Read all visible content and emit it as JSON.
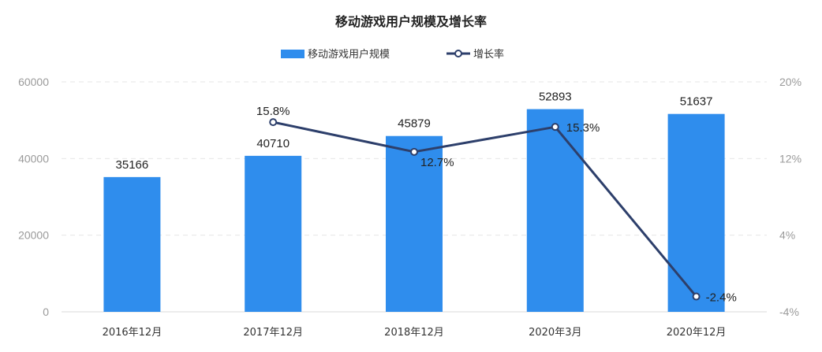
{
  "chart_data": {
    "type": "bar",
    "title": "移动游戏用户规模及增长率",
    "categories": [
      "2016年12月",
      "2017年12月",
      "2018年12月",
      "2020年3月",
      "2020年12月"
    ],
    "series": [
      {
        "name": "移动游戏用户规模",
        "type": "bar",
        "axis": "left",
        "color": "#2f8ded",
        "values": [
          35166,
          40710,
          45879,
          52893,
          51637
        ],
        "labels": [
          "35166",
          "40710",
          "45879",
          "52893",
          "51637"
        ]
      },
      {
        "name": "增长率",
        "type": "line",
        "axis": "right",
        "color": "#2d3f6b",
        "values": [
          null,
          15.8,
          12.7,
          15.3,
          -2.4
        ],
        "labels": [
          "",
          "15.8%",
          "12.7%",
          "15.3%",
          "-2.4%"
        ]
      }
    ],
    "y_left": {
      "min": 0,
      "max": 60000,
      "ticks": [
        "0",
        "20000",
        "40000",
        "60000"
      ]
    },
    "y_right": {
      "min": -4,
      "max": 20,
      "unit": "%",
      "ticks": [
        "-4%",
        "4%",
        "12%",
        "20%"
      ]
    },
    "grid": true,
    "legend": "top-center"
  }
}
